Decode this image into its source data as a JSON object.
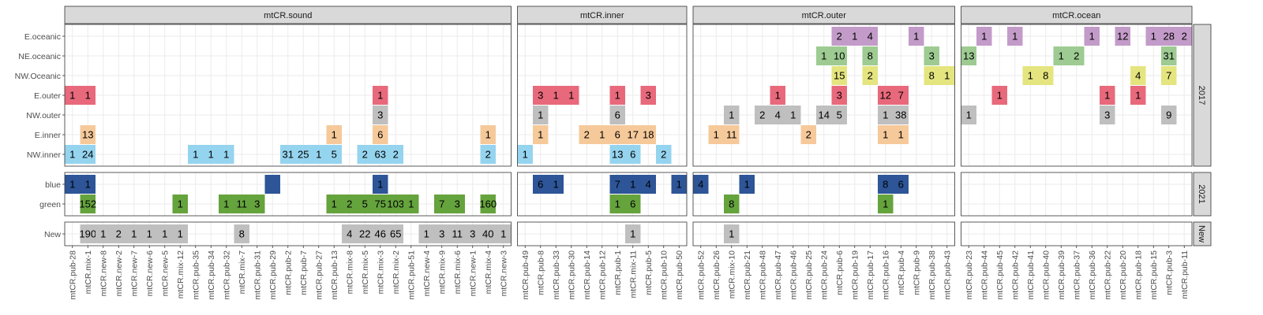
{
  "chart_data": {
    "type": "heatmap",
    "facet_columns": [
      "mtCR.sound",
      "mtCR.inner",
      "mtCR.outer",
      "mtCR.ocean"
    ],
    "facet_rows": [
      "2017",
      "2021",
      "New"
    ],
    "row_categories": {
      "2017": [
        "E.oceanic",
        "NE.oceanic",
        "NW.Oceanic",
        "E.outer",
        "NW.outer",
        "E.inner",
        "NW.inner"
      ],
      "2021": [
        "blue",
        "green"
      ],
      "New": [
        "New"
      ]
    },
    "column_categories": {
      "mtCR.sound": [
        "mtCR.pub-28",
        "mtCR.mix-1",
        "mtCR.new-8",
        "mtCR.new-2",
        "mtCR.new-7",
        "mtCR.new-6",
        "mtCR.new-5",
        "mtCR.mix-12",
        "mtCR.pub-35",
        "mtCR.pub-34",
        "mtCR.pub-32",
        "mtCR.mix-7",
        "mtCR.pub-31",
        "mtCR.pub-29",
        "mtCR.pub-2",
        "mtCR.pub-7",
        "mtCR.pub-27",
        "mtCR.pub-13",
        "mtCR.mix-8",
        "mtCR.mix-5",
        "mtCR.mix-3",
        "mtCR.mix-2",
        "mtCR.pub-51",
        "mtCR.new-4",
        "mtCR.mix-9",
        "mtCR.mix-6",
        "mtCR.new-1",
        "mtCR.mix-4",
        "mtCR.new-3"
      ],
      "mtCR.inner": [
        "mtCR.pub-49",
        "mtCR.pub-8",
        "mtCR.pub-33",
        "mtCR.pub-30",
        "mtCR.pub-14",
        "mtCR.pub-12",
        "mtCR.pub-1",
        "mtCR.mix-11",
        "mtCR.pub-5",
        "mtCR.pub-10",
        "mtCR.pub-50"
      ],
      "mtCR.outer": [
        "mtCR.pub-52",
        "mtCR.pub-26",
        "mtCR.mix-10",
        "mtCR.pub-21",
        "mtCR.pub-48",
        "mtCR.pub-47",
        "mtCR.pub-46",
        "mtCR.pub-25",
        "mtCR.pub-24",
        "mtCR.pub-6",
        "mtCR.pub-19",
        "mtCR.pub-17",
        "mtCR.pub-16",
        "mtCR.pub-4",
        "mtCR.pub-9",
        "mtCR.pub-38",
        "mtCR.pub-43"
      ],
      "mtCR.ocean": [
        "mtCR.pub-23",
        "mtCR.pub-44",
        "mtCR.pub-45",
        "mtCR.pub-42",
        "mtCR.pub-41",
        "mtCR.pub-40",
        "mtCR.pub-39",
        "mtCR.pub-37",
        "mtCR.pub-36",
        "mtCR.pub-22",
        "mtCR.pub-20",
        "mtCR.pub-18",
        "mtCR.pub-15",
        "mtCR.pub-3",
        "mtCR.pub-11"
      ]
    },
    "row_colors": {
      "E.oceanic": "#c39bc9",
      "NE.oceanic": "#9dcb92",
      "NW.Oceanic": "#e4e57f",
      "E.outer": "#e8697b",
      "NW.outer": "#bfbfbf",
      "E.inner": "#f6c99a",
      "NW.inner": "#95d4ef",
      "blue": "#2d5597",
      "green": "#65a33d",
      "New": "#bfbfbf"
    },
    "cells": {
      "2017": {
        "mtCR.sound": [
          [
            "E.outer",
            "mtCR.pub-28",
            "1"
          ],
          [
            "E.outer",
            "mtCR.mix-1",
            "1"
          ],
          [
            "E.outer",
            "mtCR.mix-3",
            "1"
          ],
          [
            "NW.outer",
            "mtCR.mix-3",
            "3"
          ],
          [
            "E.inner",
            "mtCR.mix-1",
            "13"
          ],
          [
            "E.inner",
            "mtCR.pub-13",
            "1"
          ],
          [
            "E.inner",
            "mtCR.mix-3",
            "6"
          ],
          [
            "E.inner",
            "mtCR.mix-4",
            "1"
          ],
          [
            "NW.inner",
            "mtCR.pub-28",
            "1"
          ],
          [
            "NW.inner",
            "mtCR.mix-1",
            "24"
          ],
          [
            "NW.inner",
            "mtCR.pub-35",
            "1"
          ],
          [
            "NW.inner",
            "mtCR.pub-34",
            "1"
          ],
          [
            "NW.inner",
            "mtCR.pub-32",
            "1"
          ],
          [
            "NW.inner",
            "mtCR.pub-2",
            "31"
          ],
          [
            "NW.inner",
            "mtCR.pub-7",
            "25"
          ],
          [
            "NW.inner",
            "mtCR.pub-27",
            "1"
          ],
          [
            "NW.inner",
            "mtCR.pub-13",
            "5"
          ],
          [
            "NW.inner",
            "mtCR.mix-5",
            "2"
          ],
          [
            "NW.inner",
            "mtCR.mix-3",
            "63"
          ],
          [
            "NW.inner",
            "mtCR.mix-2",
            "2"
          ],
          [
            "NW.inner",
            "mtCR.mix-4",
            "2"
          ]
        ],
        "mtCR.inner": [
          [
            "E.outer",
            "mtCR.pub-8",
            "3"
          ],
          [
            "E.outer",
            "mtCR.pub-33",
            "1"
          ],
          [
            "E.outer",
            "mtCR.pub-30",
            "1"
          ],
          [
            "E.outer",
            "mtCR.pub-1",
            "1"
          ],
          [
            "E.outer",
            "mtCR.pub-5",
            "3"
          ],
          [
            "NW.outer",
            "mtCR.pub-8",
            "1"
          ],
          [
            "NW.outer",
            "mtCR.pub-1",
            "6"
          ],
          [
            "E.inner",
            "mtCR.pub-8",
            "1"
          ],
          [
            "E.inner",
            "mtCR.pub-14",
            "2"
          ],
          [
            "E.inner",
            "mtCR.pub-12",
            "1"
          ],
          [
            "E.inner",
            "mtCR.pub-1",
            "6"
          ],
          [
            "E.inner",
            "mtCR.mix-11",
            "17"
          ],
          [
            "E.inner",
            "mtCR.pub-5",
            "18"
          ],
          [
            "NW.inner",
            "mtCR.pub-49",
            "1"
          ],
          [
            "NW.inner",
            "mtCR.pub-1",
            "13"
          ],
          [
            "NW.inner",
            "mtCR.mix-11",
            "6"
          ],
          [
            "NW.inner",
            "mtCR.pub-10",
            "2"
          ]
        ],
        "mtCR.outer": [
          [
            "E.oceanic",
            "mtCR.pub-6",
            "2"
          ],
          [
            "E.oceanic",
            "mtCR.pub-19",
            "1"
          ],
          [
            "E.oceanic",
            "mtCR.pub-17",
            "4"
          ],
          [
            "E.oceanic",
            "mtCR.pub-9",
            "1"
          ],
          [
            "NE.oceanic",
            "mtCR.pub-24",
            "1"
          ],
          [
            "NE.oceanic",
            "mtCR.pub-6",
            "10"
          ],
          [
            "NE.oceanic",
            "mtCR.pub-17",
            "8"
          ],
          [
            "NE.oceanic",
            "mtCR.pub-38",
            "3"
          ],
          [
            "NW.Oceanic",
            "mtCR.pub-6",
            "15"
          ],
          [
            "NW.Oceanic",
            "mtCR.pub-17",
            "2"
          ],
          [
            "NW.Oceanic",
            "mtCR.pub-38",
            "8"
          ],
          [
            "NW.Oceanic",
            "mtCR.pub-43",
            "1"
          ],
          [
            "E.outer",
            "mtCR.pub-47",
            "1"
          ],
          [
            "E.outer",
            "mtCR.pub-6",
            "3"
          ],
          [
            "E.outer",
            "mtCR.pub-16",
            "12"
          ],
          [
            "E.outer",
            "mtCR.pub-4",
            "7"
          ],
          [
            "NW.outer",
            "mtCR.mix-10",
            "1"
          ],
          [
            "NW.outer",
            "mtCR.pub-48",
            "2"
          ],
          [
            "NW.outer",
            "mtCR.pub-47",
            "4"
          ],
          [
            "NW.outer",
            "mtCR.pub-46",
            "1"
          ],
          [
            "NW.outer",
            "mtCR.pub-24",
            "14"
          ],
          [
            "NW.outer",
            "mtCR.pub-6",
            "5"
          ],
          [
            "NW.outer",
            "mtCR.pub-16",
            "1"
          ],
          [
            "NW.outer",
            "mtCR.pub-4",
            "38"
          ],
          [
            "E.inner",
            "mtCR.pub-26",
            "1"
          ],
          [
            "E.inner",
            "mtCR.mix-10",
            "11"
          ],
          [
            "E.inner",
            "mtCR.pub-25",
            "2"
          ],
          [
            "E.inner",
            "mtCR.pub-16",
            "1"
          ],
          [
            "E.inner",
            "mtCR.pub-4",
            "1"
          ]
        ],
        "mtCR.ocean": [
          [
            "E.oceanic",
            "mtCR.pub-44",
            "1"
          ],
          [
            "E.oceanic",
            "mtCR.pub-42",
            "1"
          ],
          [
            "E.oceanic",
            "mtCR.pub-36",
            "1"
          ],
          [
            "E.oceanic",
            "mtCR.pub-20",
            "12"
          ],
          [
            "E.oceanic",
            "mtCR.pub-15",
            "1"
          ],
          [
            "E.oceanic",
            "mtCR.pub-3",
            "28"
          ],
          [
            "E.oceanic",
            "mtCR.pub-11",
            "2"
          ],
          [
            "NE.oceanic",
            "mtCR.pub-23",
            "13"
          ],
          [
            "NE.oceanic",
            "mtCR.pub-39",
            "1"
          ],
          [
            "NE.oceanic",
            "mtCR.pub-37",
            "2"
          ],
          [
            "NE.oceanic",
            "mtCR.pub-3",
            "31"
          ],
          [
            "NW.Oceanic",
            "mtCR.pub-41",
            "1"
          ],
          [
            "NW.Oceanic",
            "mtCR.pub-40",
            "8"
          ],
          [
            "NW.Oceanic",
            "mtCR.pub-18",
            "4"
          ],
          [
            "NW.Oceanic",
            "mtCR.pub-3",
            "7"
          ],
          [
            "E.outer",
            "mtCR.pub-45",
            "1"
          ],
          [
            "E.outer",
            "mtCR.pub-22",
            "1"
          ],
          [
            "E.outer",
            "mtCR.pub-18",
            "1"
          ],
          [
            "NW.outer",
            "mtCR.pub-23",
            "1"
          ],
          [
            "NW.outer",
            "mtCR.pub-22",
            "3"
          ],
          [
            "NW.outer",
            "mtCR.pub-3",
            "9"
          ]
        ]
      },
      "2021": {
        "mtCR.sound": [
          [
            "blue",
            "mtCR.pub-28",
            "1"
          ],
          [
            "blue",
            "mtCR.mix-1",
            "1"
          ],
          [
            "blue",
            "mtCR.pub-29",
            ""
          ],
          [
            "blue",
            "mtCR.mix-3",
            "1"
          ],
          [
            "green",
            "mtCR.mix-1",
            "152"
          ],
          [
            "green",
            "mtCR.mix-12",
            "1"
          ],
          [
            "green",
            "mtCR.pub-32",
            "1"
          ],
          [
            "green",
            "mtCR.mix-7",
            "11"
          ],
          [
            "green",
            "mtCR.pub-31",
            "3"
          ],
          [
            "green",
            "mtCR.pub-13",
            "1"
          ],
          [
            "green",
            "mtCR.mix-8",
            "2"
          ],
          [
            "green",
            "mtCR.mix-5",
            "5"
          ],
          [
            "green",
            "mtCR.mix-3",
            "75"
          ],
          [
            "green",
            "mtCR.mix-2",
            "103"
          ],
          [
            "green",
            "mtCR.pub-51",
            "1"
          ],
          [
            "green",
            "mtCR.mix-9",
            "7"
          ],
          [
            "green",
            "mtCR.mix-6",
            "3"
          ],
          [
            "green",
            "mtCR.mix-4",
            "160"
          ]
        ],
        "mtCR.inner": [
          [
            "blue",
            "mtCR.pub-8",
            "6"
          ],
          [
            "blue",
            "mtCR.pub-33",
            "1"
          ],
          [
            "blue",
            "mtCR.pub-1",
            "7"
          ],
          [
            "blue",
            "mtCR.mix-11",
            "1"
          ],
          [
            "blue",
            "mtCR.pub-5",
            "4"
          ],
          [
            "blue",
            "mtCR.pub-50",
            "1"
          ],
          [
            "green",
            "mtCR.pub-1",
            "1"
          ],
          [
            "green",
            "mtCR.mix-11",
            "6"
          ]
        ],
        "mtCR.outer": [
          [
            "blue",
            "mtCR.pub-52",
            "4"
          ],
          [
            "blue",
            "mtCR.pub-21",
            "1"
          ],
          [
            "blue",
            "mtCR.pub-16",
            "8"
          ],
          [
            "blue",
            "mtCR.pub-4",
            "6"
          ],
          [
            "green",
            "mtCR.mix-10",
            "8"
          ],
          [
            "green",
            "mtCR.pub-16",
            "1"
          ]
        ],
        "mtCR.ocean": []
      },
      "New": {
        "mtCR.sound": [
          [
            "New",
            "mtCR.mix-1",
            "190"
          ],
          [
            "New",
            "mtCR.new-8",
            "1"
          ],
          [
            "New",
            "mtCR.new-2",
            "2"
          ],
          [
            "New",
            "mtCR.new-7",
            "1"
          ],
          [
            "New",
            "mtCR.new-6",
            "1"
          ],
          [
            "New",
            "mtCR.new-5",
            "1"
          ],
          [
            "New",
            "mtCR.mix-12",
            "1"
          ],
          [
            "New",
            "mtCR.mix-7",
            "8"
          ],
          [
            "New",
            "mtCR.mix-8",
            "4"
          ],
          [
            "New",
            "mtCR.mix-5",
            "22"
          ],
          [
            "New",
            "mtCR.mix-3",
            "46"
          ],
          [
            "New",
            "mtCR.mix-2",
            "65"
          ],
          [
            "New",
            "mtCR.new-4",
            "1"
          ],
          [
            "New",
            "mtCR.mix-9",
            "3"
          ],
          [
            "New",
            "mtCR.mix-6",
            "11"
          ],
          [
            "New",
            "mtCR.new-1",
            "3"
          ],
          [
            "New",
            "mtCR.mix-4",
            "40"
          ],
          [
            "New",
            "mtCR.new-3",
            "1"
          ]
        ],
        "mtCR.inner": [
          [
            "New",
            "mtCR.mix-11",
            "1"
          ]
        ],
        "mtCR.outer": [
          [
            "New",
            "mtCR.mix-10",
            "1"
          ]
        ],
        "mtCR.ocean": []
      }
    }
  }
}
